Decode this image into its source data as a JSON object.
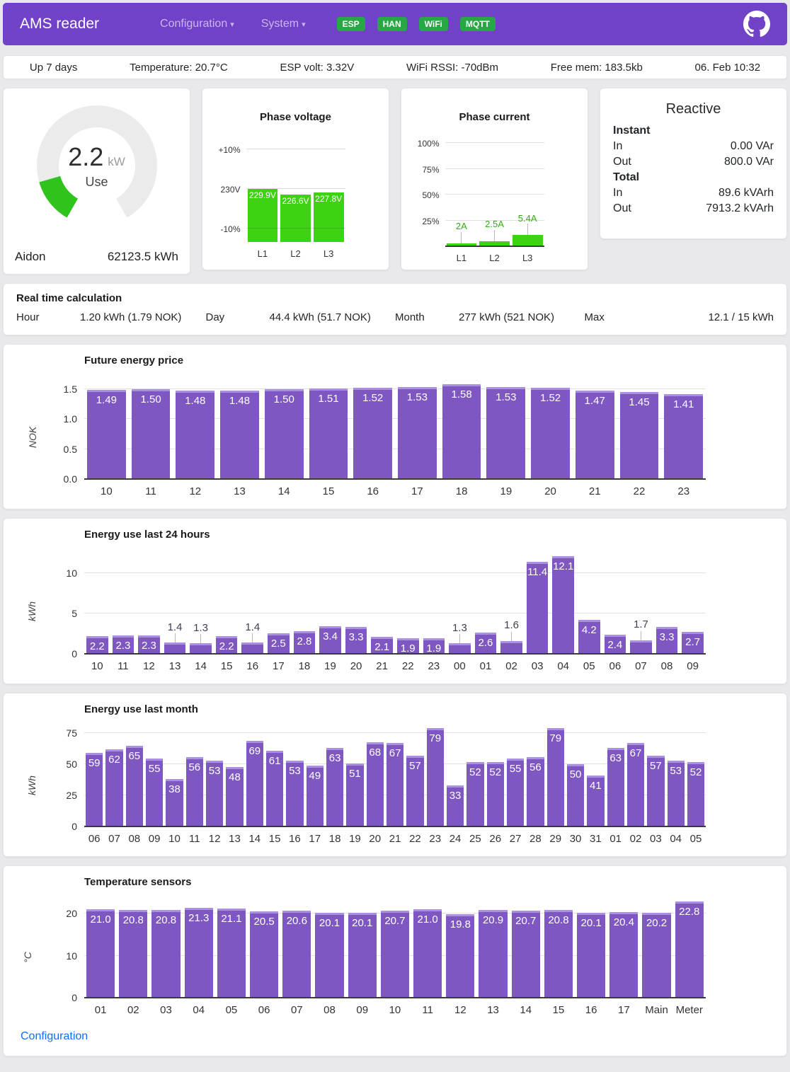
{
  "header": {
    "brand": "AMS reader",
    "nav": [
      {
        "label": "Configuration"
      },
      {
        "label": "System"
      }
    ],
    "badges": [
      "ESP",
      "HAN",
      "WiFi",
      "MQTT"
    ]
  },
  "icons": {
    "chevron_down": "▾"
  },
  "statusbar": {
    "items": [
      "Up 7 days",
      "Temperature: 20.7°C",
      "ESP volt: 3.32V",
      "WiFi RSSI: -70dBm",
      "Free mem: 183.5kb",
      "06. Feb 10:32"
    ]
  },
  "gauge": {
    "value": "2.2",
    "unit": "kW",
    "label": "Use",
    "name": "Aidon",
    "total": "62123.5 kWh",
    "fraction_of_max": 0.147
  },
  "reactive": {
    "title": "Reactive",
    "sections": [
      {
        "title": "Instant",
        "rows": [
          {
            "label": "In",
            "value": "0.00 VAr"
          },
          {
            "label": "Out",
            "value": "800.0 VAr"
          }
        ]
      },
      {
        "title": "Total",
        "rows": [
          {
            "label": "In",
            "value": "89.6 kVArh"
          },
          {
            "label": "Out",
            "value": "7913.2 kVArh"
          }
        ]
      }
    ]
  },
  "realtime": {
    "title": "Real time calculation",
    "items": [
      {
        "label": "Hour",
        "value": "1.20 kWh (1.79 NOK)"
      },
      {
        "label": "Day",
        "value": "44.4 kWh (51.7 NOK)"
      },
      {
        "label": "Month",
        "value": "277 kWh (521 NOK)"
      },
      {
        "label": "Max",
        "value": "12.1 / 15 kWh"
      }
    ]
  },
  "footer": {
    "link": "Configuration"
  },
  "colors": {
    "header_purple": "#7142c8",
    "bar_purple": "#7e57c2",
    "bar_purple_border": "#aa90e0",
    "green": "#3ed312",
    "gauge_green": "#2fc41c",
    "gauge_track": "#ebebeb",
    "badge_green": "#28a745",
    "link_blue": "#0d6efd"
  },
  "chart_data": [
    {
      "id": "phase_voltage",
      "type": "bar",
      "title": "Phase voltage",
      "categories": [
        "L1",
        "L2",
        "L3"
      ],
      "values": [
        229.9,
        226.6,
        227.8
      ],
      "labels": [
        "229.9V",
        "226.6V",
        "227.8V"
      ],
      "unit": "V",
      "ylim": [
        199,
        255.7
      ],
      "grid": true,
      "grid_over_bars": true,
      "baseline": false,
      "yticks": [
        {
          "v": 207,
          "label": "-10%"
        },
        {
          "v": 230,
          "label": "230V"
        },
        {
          "v": 253,
          "label": "+10%"
        }
      ],
      "bar_color": "green",
      "label_style": "inside-white"
    },
    {
      "id": "phase_current",
      "type": "bar",
      "title": "Phase current",
      "categories": [
        "L1",
        "L2",
        "L3"
      ],
      "values": [
        2,
        2.5,
        5.4
      ],
      "labels": [
        "2A",
        "2.5A",
        "5.4A"
      ],
      "unit": "A",
      "axis_unit": "percent-of-max",
      "plot_values": [
        3,
        5,
        10.8
      ],
      "ylim": [
        0,
        103
      ],
      "grid": true,
      "baseline": true,
      "yticks": [
        {
          "v": 25,
          "label": "25%"
        },
        {
          "v": 50,
          "label": "50%"
        },
        {
          "v": 75,
          "label": "75%"
        },
        {
          "v": 100,
          "label": "100%"
        }
      ],
      "bar_color": "green",
      "label_style": "outside-green"
    },
    {
      "id": "price",
      "type": "bar",
      "title": "Future energy price",
      "ylabel": "NOK",
      "categories": [
        "10",
        "11",
        "12",
        "13",
        "14",
        "15",
        "16",
        "17",
        "18",
        "19",
        "20",
        "21",
        "22",
        "23"
      ],
      "values": [
        1.49,
        1.5,
        1.48,
        1.48,
        1.5,
        1.51,
        1.52,
        1.53,
        1.58,
        1.53,
        1.52,
        1.47,
        1.45,
        1.41
      ],
      "labels": [
        "1.49",
        "1.50",
        "1.48",
        "1.48",
        "1.50",
        "1.51",
        "1.52",
        "1.53",
        "1.58",
        "1.53",
        "1.52",
        "1.47",
        "1.45",
        "1.41"
      ],
      "ylim": [
        0,
        1.71
      ],
      "grid": true,
      "baseline": true,
      "yticks": [
        {
          "v": 0,
          "label": "0.0"
        },
        {
          "v": 0.5,
          "label": "0.5"
        },
        {
          "v": 1,
          "label": "1.0"
        },
        {
          "v": 1.5,
          "label": "1.5"
        }
      ],
      "bar_color": "purple",
      "label_style": "inside-white"
    },
    {
      "id": "last24",
      "type": "bar",
      "title": "Energy use last 24 hours",
      "ylabel": "kWh",
      "categories": [
        "10",
        "11",
        "12",
        "13",
        "14",
        "15",
        "16",
        "17",
        "18",
        "19",
        "20",
        "21",
        "22",
        "23",
        "00",
        "01",
        "02",
        "03",
        "04",
        "05",
        "06",
        "07",
        "08",
        "09"
      ],
      "values": [
        2.2,
        2.3,
        2.3,
        1.4,
        1.3,
        2.2,
        1.4,
        2.5,
        2.8,
        3.4,
        3.3,
        2.1,
        1.9,
        1.9,
        1.3,
        2.6,
        1.6,
        11.4,
        12.1,
        4.2,
        2.4,
        1.7,
        3.3,
        2.7
      ],
      "labels": [
        "2.2",
        "2.3",
        "2.3",
        "1.4",
        "1.3",
        "2.2",
        "1.4",
        "2.5",
        "2.8",
        "3.4",
        "3.3",
        "2.1",
        "1.9",
        "1.9",
        "1.3",
        "2.6",
        "1.6",
        "11.4",
        "12.1",
        "4.2",
        "2.4",
        "1.7",
        "3.3",
        "2.7"
      ],
      "ylim": [
        0,
        12.8
      ],
      "grid": true,
      "baseline": true,
      "outside_below": 1.8,
      "yticks": [
        {
          "v": 0,
          "label": "0"
        },
        {
          "v": 5,
          "label": "5"
        },
        {
          "v": 10,
          "label": "10"
        }
      ],
      "bar_color": "purple",
      "label_style": "inside-white"
    },
    {
      "id": "month",
      "type": "bar",
      "title": "Energy use last month",
      "ylabel": "kWh",
      "categories": [
        "06",
        "07",
        "08",
        "09",
        "10",
        "11",
        "12",
        "13",
        "14",
        "15",
        "16",
        "17",
        "18",
        "19",
        "20",
        "21",
        "22",
        "23",
        "24",
        "25",
        "26",
        "27",
        "28",
        "29",
        "30",
        "31",
        "01",
        "02",
        "03",
        "04",
        "05"
      ],
      "values": [
        59,
        62,
        65,
        55,
        38,
        56,
        53,
        48,
        69,
        61,
        53,
        49,
        63,
        51,
        68,
        67,
        57,
        79,
        33,
        52,
        52,
        55,
        56,
        79,
        50,
        41,
        63,
        67,
        57,
        53,
        52
      ],
      "labels": [
        "59",
        "62",
        "65",
        "55",
        "38",
        "56",
        "53",
        "48",
        "69",
        "61",
        "53",
        "49",
        "63",
        "51",
        "68",
        "67",
        "57",
        "79",
        "33",
        "52",
        "52",
        "55",
        "56",
        "79",
        "50",
        "41",
        "63",
        "67",
        "57",
        "53",
        "52"
      ],
      "ylim": [
        0,
        81.5
      ],
      "grid": true,
      "baseline": true,
      "yticks": [
        {
          "v": 0,
          "label": "0"
        },
        {
          "v": 25,
          "label": "25"
        },
        {
          "v": 50,
          "label": "50"
        },
        {
          "v": 75,
          "label": "75"
        }
      ],
      "bar_color": "purple",
      "label_style": "inside-white"
    },
    {
      "id": "temps",
      "type": "bar",
      "title": "Temperature sensors",
      "ylabel": "°C",
      "categories": [
        "01",
        "02",
        "03",
        "04",
        "05",
        "06",
        "07",
        "08",
        "09",
        "10",
        "11",
        "12",
        "13",
        "14",
        "15",
        "16",
        "17",
        "Main",
        "Meter"
      ],
      "values": [
        21.0,
        20.8,
        20.8,
        21.3,
        21.1,
        20.5,
        20.6,
        20.1,
        20.1,
        20.7,
        21.0,
        19.8,
        20.9,
        20.7,
        20.8,
        20.1,
        20.4,
        20.2,
        22.8
      ],
      "labels": [
        "21.0",
        "20.8",
        "20.8",
        "21.3",
        "21.1",
        "20.5",
        "20.6",
        "20.1",
        "20.1",
        "20.7",
        "21.0",
        "19.8",
        "20.9",
        "20.7",
        "20.8",
        "20.1",
        "20.4",
        "20.2",
        "22.8"
      ],
      "ylim": [
        0,
        23.7
      ],
      "grid": true,
      "baseline": true,
      "yticks": [
        {
          "v": 0,
          "label": "0"
        },
        {
          "v": 10,
          "label": "10"
        },
        {
          "v": 20,
          "label": "20"
        }
      ],
      "bar_color": "purple",
      "label_style": "inside-white"
    }
  ]
}
